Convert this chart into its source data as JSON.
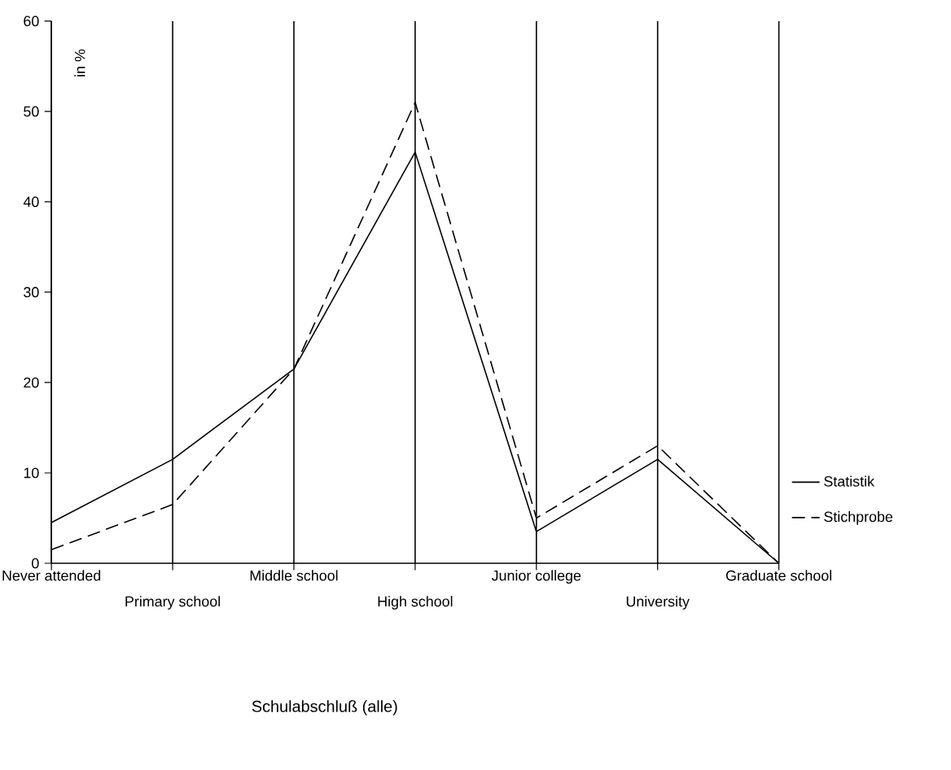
{
  "chart_data": {
    "type": "line",
    "ylabel": "in %",
    "annotations": [
      "Schulabschluß (alle)"
    ],
    "categories": [
      "Never attended",
      "Primary school",
      "Middle school",
      "High school",
      "Junior college",
      "University",
      "Graduate school"
    ],
    "ylim": [
      0,
      60
    ],
    "yticks": [
      0,
      10,
      20,
      30,
      40,
      50,
      60
    ],
    "grid": "x",
    "legend": "right",
    "marker": "none",
    "series": [
      {
        "name": "Statistik",
        "color": "#000000",
        "line_style": "solid",
        "values": [
          4.5,
          11.5,
          21.5,
          45.5,
          3.5,
          11.5,
          0
        ]
      },
      {
        "name": "Stichprobe",
        "color": "#000000",
        "line_style": "dashed",
        "values": [
          1.5,
          6.5,
          21.5,
          51,
          5,
          13,
          0
        ]
      }
    ]
  }
}
